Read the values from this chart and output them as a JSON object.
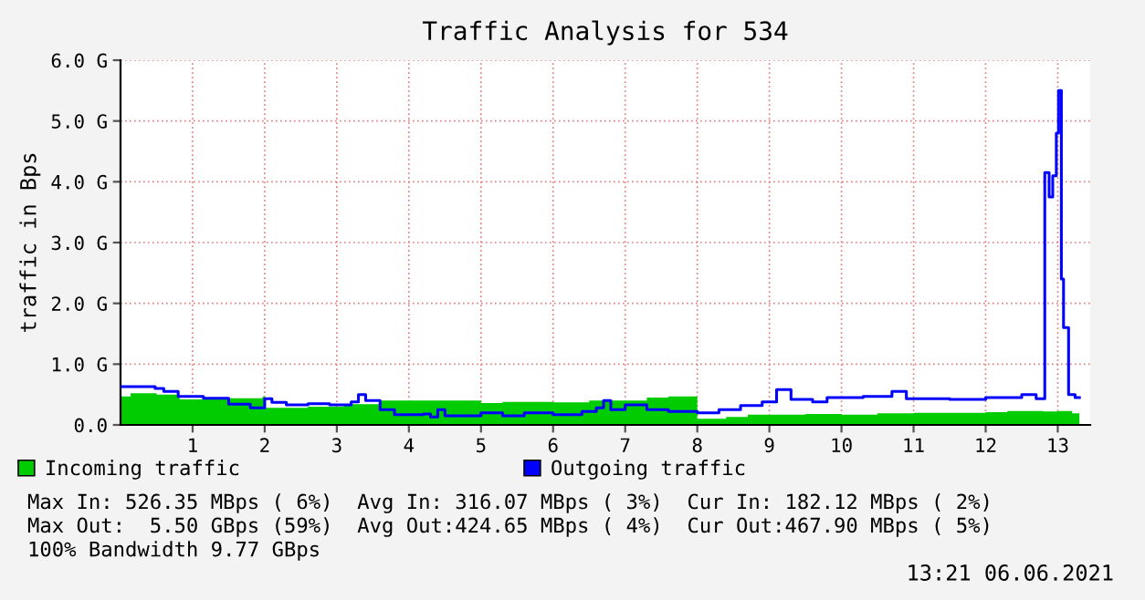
{
  "chart_data": {
    "type": "step",
    "title": "Traffic Analysis for 534",
    "ylabel": "traffic in Bps",
    "xlim": [
      0,
      13.45
    ],
    "xticks": [
      1,
      2,
      3,
      4,
      5,
      6,
      7,
      8,
      9,
      10,
      11,
      12,
      13
    ],
    "ylim": [
      0,
      6.0
    ],
    "yticks": [
      {
        "value": 0,
        "label": "0.0"
      },
      {
        "value": 1,
        "label": "1.0 G"
      },
      {
        "value": 2,
        "label": "2.0 G"
      },
      {
        "value": 3,
        "label": "3.0 G"
      },
      {
        "value": 4,
        "label": "4.0 G"
      },
      {
        "value": 5,
        "label": "5.0 G"
      },
      {
        "value": 6,
        "label": "6.0 G"
      }
    ],
    "grid": true,
    "legend": "bottom left",
    "series": [
      {
        "name": "Incoming traffic",
        "type": "area",
        "color": "#00cc00",
        "x": [
          0,
          0.14,
          0.5,
          0.82,
          1.23,
          1.97,
          2.0,
          2.6,
          3.1,
          3.6,
          5.0,
          5.3,
          6.0,
          6.5,
          7.0,
          7.3,
          7.6,
          8.0,
          8.4,
          8.7,
          9.5,
          10.0,
          10.5,
          11.0,
          11.5,
          12.0,
          12.3,
          12.8,
          13.0,
          13.2,
          13.3
        ],
        "values": [
          0.47,
          0.52,
          0.5,
          0.42,
          0.44,
          0.47,
          0.28,
          0.3,
          0.34,
          0.4,
          0.36,
          0.38,
          0.37,
          0.4,
          0.4,
          0.45,
          0.47,
          0.1,
          0.13,
          0.17,
          0.18,
          0.17,
          0.19,
          0.2,
          0.2,
          0.21,
          0.23,
          0.22,
          0.23,
          0.19,
          0.19
        ]
      },
      {
        "name": "Outgoing traffic",
        "color": "#0000ff",
        "x": [
          0,
          0.48,
          0.6,
          0.8,
          1.15,
          1.5,
          1.8,
          2.0,
          2.1,
          2.3,
          2.6,
          2.9,
          3.2,
          3.3,
          3.4,
          3.6,
          3.8,
          4.2,
          4.3,
          4.4,
          4.5,
          5.0,
          5.3,
          5.6,
          6.0,
          6.4,
          6.6,
          6.7,
          6.8,
          7.0,
          7.3,
          7.6,
          8.0,
          8.3,
          8.6,
          8.9,
          9.1,
          9.3,
          9.6,
          9.8,
          10.3,
          10.7,
          10.9,
          11.5,
          12.0,
          12.5,
          12.7,
          12.82,
          12.88,
          12.93,
          12.98,
          13.01,
          13.05,
          13.08,
          13.15,
          13.24,
          13.3
        ],
        "values": [
          0.63,
          0.6,
          0.55,
          0.47,
          0.44,
          0.34,
          0.28,
          0.43,
          0.37,
          0.33,
          0.35,
          0.33,
          0.38,
          0.5,
          0.4,
          0.25,
          0.17,
          0.18,
          0.13,
          0.25,
          0.15,
          0.2,
          0.15,
          0.2,
          0.17,
          0.22,
          0.28,
          0.4,
          0.25,
          0.33,
          0.25,
          0.22,
          0.2,
          0.25,
          0.32,
          0.38,
          0.58,
          0.42,
          0.38,
          0.45,
          0.47,
          0.55,
          0.43,
          0.42,
          0.45,
          0.5,
          0.43,
          4.15,
          3.75,
          4.1,
          4.8,
          5.5,
          2.4,
          1.6,
          0.5,
          0.45,
          0.45
        ]
      }
    ],
    "annotations": [
      "Max In: 526.35 MBps ( 6%)  Avg In: 316.07 MBps ( 3%)  Cur In: 182.12 MBps ( 2%)",
      "Max Out:  5.50 GBps (59%)  Avg Out:424.65 MBps ( 4%)  Cur Out:467.90 MBps ( 5%)",
      "100% Bandwidth 9.77 GBps",
      "13:21 06.06.2021"
    ]
  }
}
